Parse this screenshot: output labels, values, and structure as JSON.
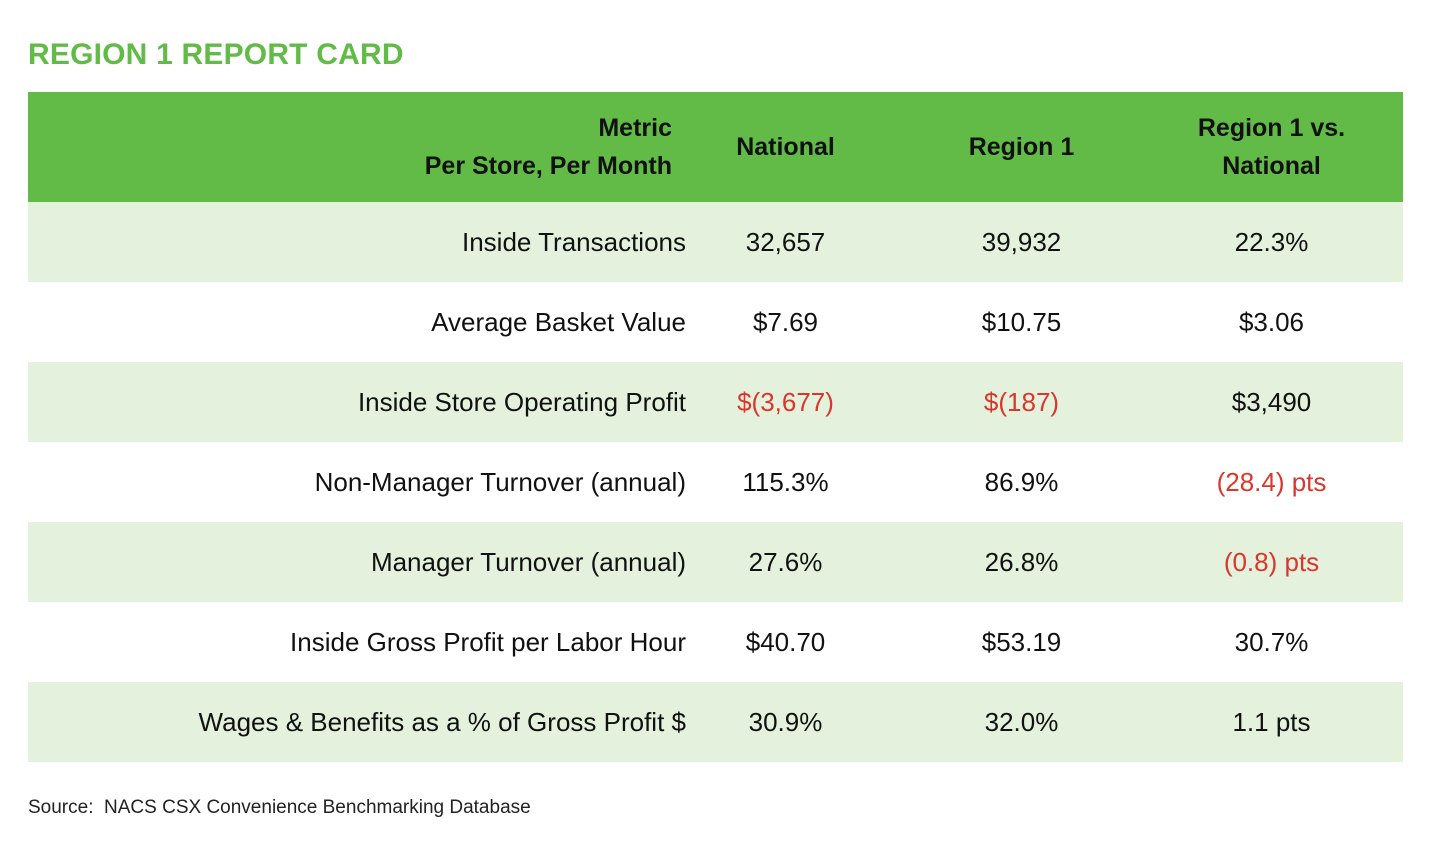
{
  "title": "REGION 1 REPORT CARD",
  "headers": {
    "metric_line1": "Metric",
    "metric_line2": "Per Store, Per Month",
    "national": "National",
    "region": "Region 1",
    "diff_line1": "Region 1 vs.",
    "diff_line2": "National"
  },
  "rows": [
    {
      "metric": "Inside Transactions",
      "national": "32,657",
      "region": "39,932",
      "diff": "22.3%"
    },
    {
      "metric": "Average Basket Value",
      "national": "$7.69",
      "region": "$10.75",
      "diff": "$3.06"
    },
    {
      "metric": "Inside Store Operating Profit",
      "national": "$(3,677)",
      "region": "$(187)",
      "diff": "$3,490"
    },
    {
      "metric": "Non-Manager Turnover (annual)",
      "national": "115.3%",
      "region": "86.9%",
      "diff": "(28.4) pts"
    },
    {
      "metric": "Manager Turnover (annual)",
      "national": "27.6%",
      "region": "26.8%",
      "diff": "(0.8) pts"
    },
    {
      "metric": "Inside Gross Profit per Labor Hour",
      "national": "$40.70",
      "region": "$53.19",
      "diff": "30.7%"
    },
    {
      "metric": "Wages & Benefits as a % of Gross Profit $",
      "national": "30.9%",
      "region": "32.0%",
      "diff": "1.1 pts"
    }
  ],
  "source": "Source:  NACS CSX Convenience Benchmarking Database",
  "colors": {
    "accent_green": "#62bb46",
    "row_shade": "#e3f1dd",
    "negative_red": "#d9372b"
  }
}
